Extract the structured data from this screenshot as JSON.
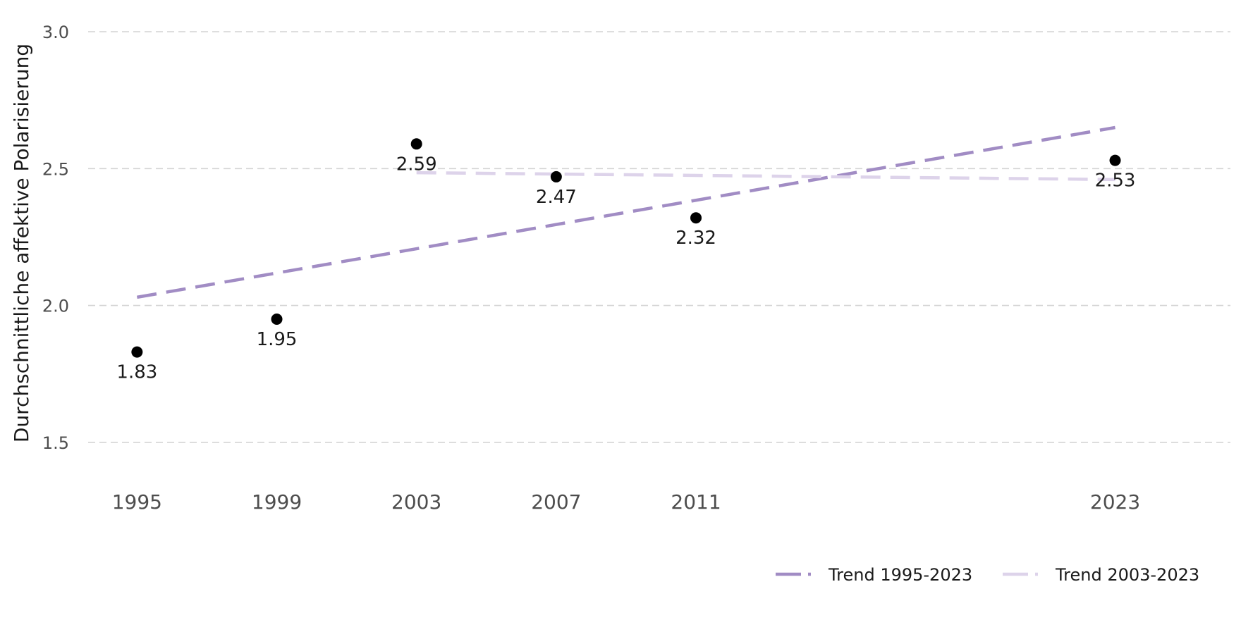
{
  "chart_data": {
    "type": "scatter",
    "title": "",
    "xlabel": "",
    "ylabel": "Durchschnittliche affektive Polarisierung",
    "x_ticks": [
      1995,
      1999,
      2003,
      2007,
      2011,
      2023
    ],
    "y_ticks": [
      "1.5",
      "2.0",
      "2.5",
      "3.0"
    ],
    "xlim": [
      1993.6,
      2026.3
    ],
    "ylim": [
      1.34,
      3.0
    ],
    "grid": "horizontal-dashed",
    "legend_position": "bottom-right",
    "points": [
      {
        "x": 1995,
        "y": 1.83,
        "label": "1.83"
      },
      {
        "x": 1999,
        "y": 1.95,
        "label": "1.95"
      },
      {
        "x": 2003,
        "y": 2.59,
        "label": "2.59"
      },
      {
        "x": 2007,
        "y": 2.47,
        "label": "2.47"
      },
      {
        "x": 2011,
        "y": 2.32,
        "label": "2.32"
      },
      {
        "x": 2023,
        "y": 2.53,
        "label": "2.53"
      }
    ],
    "trend_lines": [
      {
        "name": "Trend 1995-2023",
        "color": "#a18cc4",
        "x": [
          1995,
          2023
        ],
        "y": [
          2.03,
          2.65
        ],
        "stroke_width": 4.5
      },
      {
        "name": "Trend 2003-2023",
        "color": "#ddd3ea",
        "x": [
          2003,
          2023
        ],
        "y": [
          2.485,
          2.46
        ],
        "stroke_width": 4.5
      }
    ],
    "point_color": "#000000"
  }
}
